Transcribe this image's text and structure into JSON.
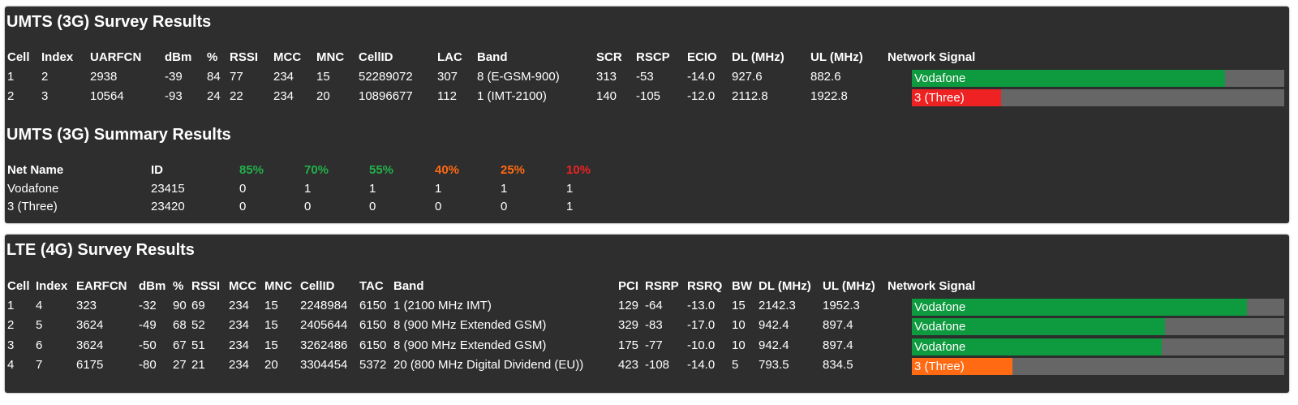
{
  "umts_survey": {
    "title": "UMTS (3G) Survey Results",
    "headers": [
      "Cell",
      "Index",
      "UARFCN",
      "dBm",
      "%",
      "RSSI",
      "MCC",
      "MNC",
      "CellID",
      "LAC",
      "Band",
      "SCR",
      "RSCP",
      "ECIO",
      "DL (MHz)",
      "UL (MHz)",
      "Network Signal"
    ],
    "rows": [
      {
        "cells": [
          "1",
          "2",
          "2938",
          "-39",
          "84",
          "77",
          "234",
          "15",
          "52289072",
          "307",
          "8 (E-GSM-900)",
          "313",
          "-53",
          "-14.0",
          "927.6",
          "882.6"
        ],
        "network": "Vodafone",
        "signal_pct": 84,
        "color": "#0e9a3e"
      },
      {
        "cells": [
          "2",
          "3",
          "10564",
          "-93",
          "24",
          "22",
          "234",
          "20",
          "10896677",
          "112",
          "1 (IMT-2100)",
          "140",
          "-105",
          "-12.0",
          "2112.8",
          "1922.8"
        ],
        "network": "3 (Three)",
        "signal_pct": 24,
        "color": "#ee2222"
      }
    ]
  },
  "umts_summary": {
    "title": "UMTS (3G) Summary Results",
    "headers": [
      "Net Name",
      "ID",
      "85%",
      "70%",
      "55%",
      "40%",
      "25%",
      "10%"
    ],
    "header_colors": [
      "#ffffff",
      "#ffffff",
      "#22b04a",
      "#22b04a",
      "#22b04a",
      "#ff6a13",
      "#ff6a13",
      "#ee2222"
    ],
    "rows": [
      [
        "Vodafone",
        "23415",
        "0",
        "1",
        "1",
        "1",
        "1",
        "1"
      ],
      [
        "3 (Three)",
        "23420",
        "0",
        "0",
        "0",
        "0",
        "0",
        "1"
      ]
    ]
  },
  "lte_survey": {
    "title": "LTE (4G) Survey Results",
    "headers": [
      "Cell",
      "Index",
      "EARFCN",
      "dBm",
      "%",
      "RSSI",
      "MCC",
      "MNC",
      "CellID",
      "TAC",
      "Band",
      "PCI",
      "RSRP",
      "RSRQ",
      "BW",
      "DL (MHz)",
      "UL (MHz)",
      "Network Signal"
    ],
    "rows": [
      {
        "cells": [
          "1",
          "4",
          "323",
          "-32",
          "90",
          "69",
          "234",
          "15",
          "2248984",
          "6150",
          "1 (2100 MHz IMT)",
          "129",
          "-64",
          "-13.0",
          "15",
          "2142.3",
          "1952.3"
        ],
        "network": "Vodafone",
        "signal_pct": 90,
        "color": "#0e9a3e"
      },
      {
        "cells": [
          "2",
          "5",
          "3624",
          "-49",
          "68",
          "52",
          "234",
          "15",
          "2405644",
          "6150",
          "8 (900 MHz Extended GSM)",
          "329",
          "-83",
          "-17.0",
          "10",
          "942.4",
          "897.4"
        ],
        "network": "Vodafone",
        "signal_pct": 68,
        "color": "#0e9a3e"
      },
      {
        "cells": [
          "3",
          "6",
          "3624",
          "-50",
          "67",
          "51",
          "234",
          "15",
          "3262486",
          "6150",
          "8 (900 MHz Extended GSM)",
          "175",
          "-77",
          "-10.0",
          "10",
          "942.4",
          "897.4"
        ],
        "network": "Vodafone",
        "signal_pct": 67,
        "color": "#0e9a3e"
      },
      {
        "cells": [
          "4",
          "7",
          "6175",
          "-80",
          "27",
          "21",
          "234",
          "20",
          "3304454",
          "5372",
          "20 (800 MHz Digital Dividend (EU))",
          "423",
          "-108",
          "-14.0",
          "5",
          "793.5",
          "834.5"
        ],
        "network": "3 (Three)",
        "signal_pct": 27,
        "color": "#ff6a13"
      }
    ]
  }
}
